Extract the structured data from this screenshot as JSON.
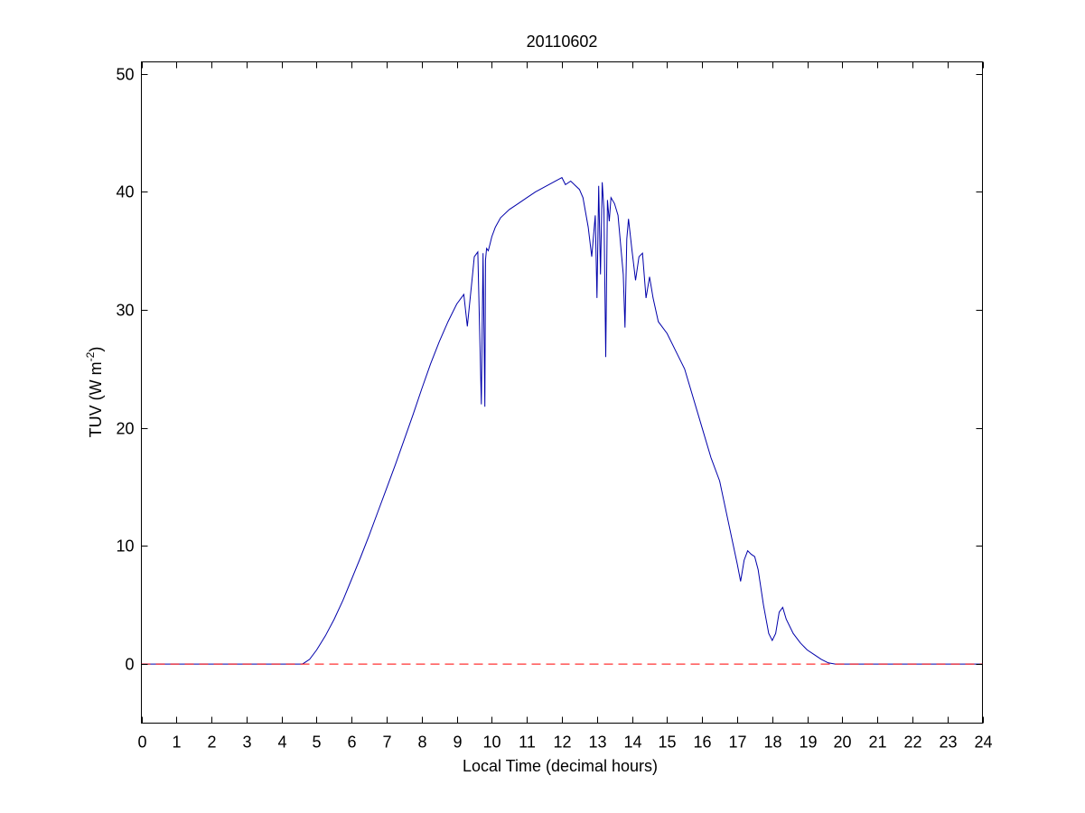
{
  "chart_data": {
    "type": "line",
    "title": "20110602",
    "xlabel": "Local Time (decimal hours)",
    "ylabel": {
      "main": "TUV (W m",
      "superscript": "-2",
      "close": ")"
    },
    "xlim": [
      0,
      24
    ],
    "ylim": [
      -5,
      51
    ],
    "xticks": [
      0,
      1,
      2,
      3,
      4,
      5,
      6,
      7,
      8,
      9,
      10,
      11,
      12,
      13,
      14,
      15,
      16,
      17,
      18,
      19,
      20,
      21,
      22,
      23,
      24
    ],
    "yticks": [
      0,
      10,
      20,
      30,
      40,
      50
    ],
    "grid": false,
    "series": [
      {
        "color": "#0000aa",
        "style": "solid",
        "x": [
          0,
          4.6,
          4.8,
          5.0,
          5.25,
          5.5,
          5.75,
          6.0,
          6.25,
          6.5,
          6.75,
          7.0,
          7.25,
          7.5,
          7.75,
          8.0,
          8.25,
          8.5,
          8.75,
          9.0,
          9.2,
          9.3,
          9.45,
          9.5,
          9.6,
          9.7,
          9.75,
          9.8,
          9.82,
          9.85,
          9.9,
          9.95,
          10.0,
          10.1,
          10.25,
          10.5,
          10.75,
          11.0,
          11.25,
          11.5,
          11.75,
          12.0,
          12.1,
          12.25,
          12.5,
          12.6,
          12.75,
          12.85,
          12.95,
          13.0,
          13.05,
          13.1,
          13.15,
          13.2,
          13.25,
          13.3,
          13.35,
          13.4,
          13.5,
          13.6,
          13.75,
          13.8,
          13.85,
          13.9,
          14.0,
          14.1,
          14.2,
          14.3,
          14.4,
          14.5,
          14.6,
          14.75,
          15.0,
          15.25,
          15.5,
          15.75,
          16.0,
          16.25,
          16.5,
          16.75,
          17.0,
          17.1,
          17.2,
          17.3,
          17.4,
          17.5,
          17.6,
          17.75,
          17.9,
          18.0,
          18.1,
          18.2,
          18.3,
          18.4,
          18.6,
          18.8,
          19.0,
          19.2,
          19.4,
          19.6,
          19.8,
          24
        ],
        "y": [
          0,
          0,
          0.4,
          1.2,
          2.4,
          3.8,
          5.4,
          7.2,
          9.0,
          10.9,
          12.9,
          14.9,
          16.9,
          19.0,
          21.1,
          23.3,
          25.4,
          27.3,
          29.0,
          30.5,
          31.3,
          28.6,
          33.0,
          34.5,
          34.9,
          22.0,
          34.8,
          21.8,
          34.2,
          35.2,
          35.0,
          35.6,
          36.2,
          37.0,
          37.8,
          38.5,
          39.0,
          39.5,
          40.0,
          40.4,
          40.8,
          41.2,
          40.6,
          40.9,
          40.2,
          39.5,
          37.0,
          34.5,
          38.0,
          31.0,
          40.5,
          33.0,
          40.8,
          38.5,
          26.0,
          39.3,
          37.5,
          39.5,
          39.0,
          38.0,
          33.0,
          28.5,
          36.0,
          37.7,
          35.0,
          32.5,
          34.5,
          34.8,
          31.0,
          32.8,
          31.0,
          29.0,
          28.0,
          26.5,
          25.0,
          22.5,
          20.0,
          17.5,
          15.5,
          12.0,
          8.5,
          7.0,
          8.8,
          9.6,
          9.3,
          9.1,
          8.0,
          5.0,
          2.6,
          2.0,
          2.6,
          4.4,
          4.8,
          3.8,
          2.6,
          1.8,
          1.2,
          0.8,
          0.4,
          0.1,
          0,
          0
        ]
      },
      {
        "color": "#ff0000",
        "style": "dashed",
        "x": [
          0,
          24
        ],
        "y": [
          0,
          0
        ]
      }
    ]
  }
}
